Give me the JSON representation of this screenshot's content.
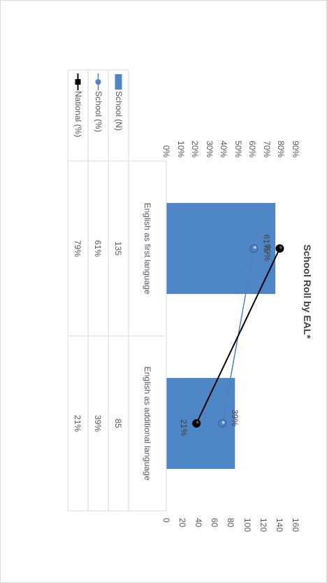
{
  "chart_data": {
    "type": "bar",
    "title": "School Roll by EAL*",
    "categories": [
      "English as first language",
      "English as additional language"
    ],
    "series": [
      {
        "name": "School  (N)",
        "kind": "bar",
        "axis": "right",
        "values": [
          135,
          85
        ],
        "color": "#4e86c8"
      },
      {
        "name": "School (%)",
        "kind": "line",
        "axis": "left",
        "values": [
          61,
          39
        ],
        "labels": [
          "61%",
          "39%"
        ],
        "color": "#4f81bd"
      },
      {
        "name": "National (%)",
        "kind": "line",
        "axis": "left",
        "values": [
          79,
          21
        ],
        "labels": [
          "79%",
          "21%"
        ],
        "color": "#000000"
      }
    ],
    "left_axis": {
      "min": 0,
      "max": 90,
      "ticks": [
        "0%",
        "10%",
        "20%",
        "30%",
        "40%",
        "50%",
        "60%",
        "70%",
        "80%",
        "90%"
      ]
    },
    "right_axis": {
      "min": 0,
      "max": 160,
      "ticks": [
        "0",
        "20",
        "40",
        "60",
        "80",
        "100",
        "120",
        "140",
        "160"
      ]
    },
    "table": {
      "rows": [
        {
          "label": "School  (N)",
          "values": [
            "135",
            "85"
          ]
        },
        {
          "label": "School (%)",
          "values": [
            "61%",
            "39%"
          ]
        },
        {
          "label": "National (%)",
          "values": [
            "79%",
            "21%"
          ]
        }
      ]
    },
    "legend": "data-table"
  }
}
